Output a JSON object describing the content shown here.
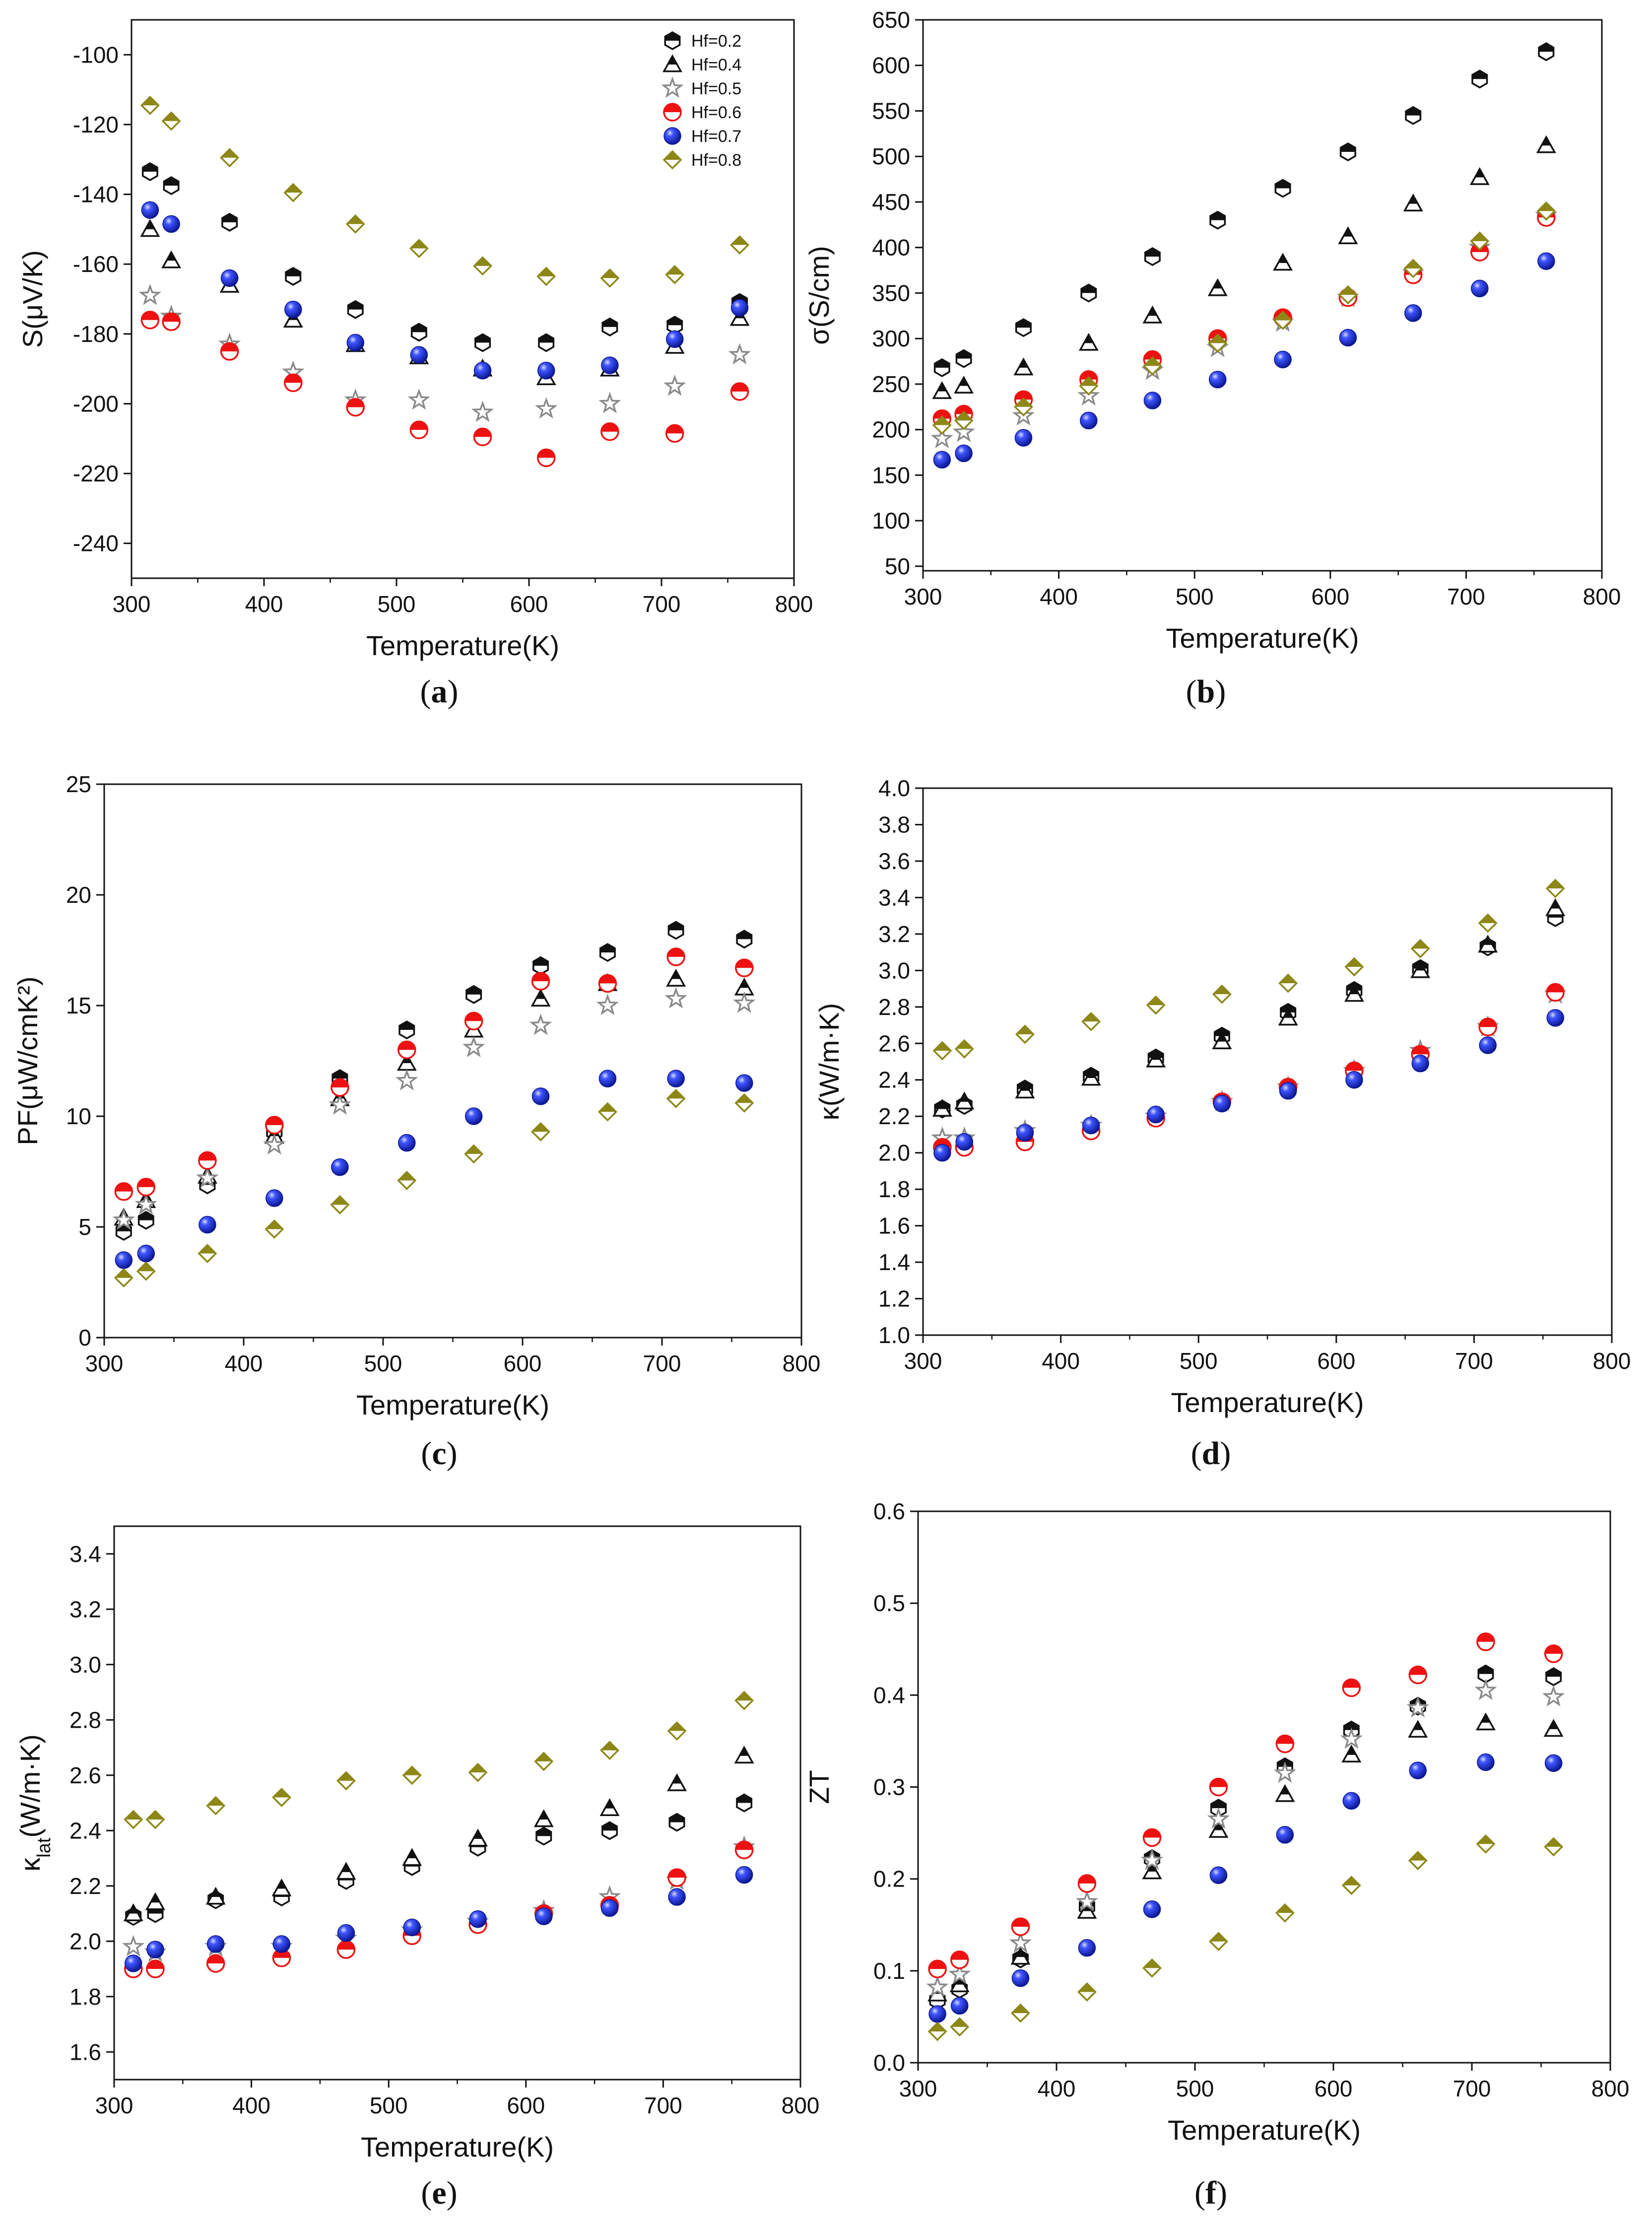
{
  "colors": {
    "Hf=0.2": "#111111",
    "Hf=0.4": "#111111",
    "Hf=0.5": "#8a8a8a",
    "Hf=0.6": "#ee1111",
    "Hf=0.7": "#1a2fe6",
    "Hf=0.8": "#8c8716"
  },
  "markers": {
    "Hf=0.2": "hexagon",
    "Hf=0.4": "triangle",
    "Hf=0.5": "star",
    "Hf=0.6": "circle",
    "Hf=0.7": "ball",
    "Hf=0.8": "diamond"
  },
  "chart_data": [
    {
      "id": "a",
      "type": "scatter",
      "caption_letter": "a",
      "xlabel": "Temperature(K)",
      "ylabel": "S(μV/K)",
      "xlim": [
        300,
        800
      ],
      "ylim": [
        -250,
        -90
      ],
      "xticks": [
        300,
        400,
        500,
        600,
        700,
        800
      ],
      "yticks": [
        -240,
        -220,
        -200,
        -180,
        -160,
        -140,
        -120,
        -100
      ],
      "legend": [
        "Hf=0.2",
        "Hf=0.4",
        "Hf=0.5",
        "Hf=0.6",
        "Hf=0.7",
        "Hf=0.8"
      ],
      "legend_position": "top-right",
      "x": [
        314,
        330,
        374,
        422,
        469,
        517,
        565,
        613,
        661,
        710,
        759
      ],
      "series": [
        {
          "name": "Hf=0.2",
          "values": [
            -133.5,
            -137.5,
            -148,
            -163.5,
            -173,
            -179.5,
            -182.5,
            -182.5,
            -178,
            -177.5,
            -171
          ]
        },
        {
          "name": "Hf=0.4",
          "values": [
            -150,
            -159,
            -166,
            -176,
            -183,
            -186.5,
            -190,
            -192.5,
            -190,
            -183.5,
            -175.5
          ]
        },
        {
          "name": "Hf=0.5",
          "values": [
            -169,
            -175,
            -183,
            -191,
            -199,
            -199,
            -202.5,
            -201.5,
            -200,
            -195,
            -186
          ]
        },
        {
          "name": "Hf=0.6",
          "values": [
            -176,
            -176.5,
            -185,
            -194,
            -201,
            -207.5,
            -209.5,
            -215.5,
            -208,
            -208.5,
            -196.5
          ]
        },
        {
          "name": "Hf=0.7",
          "values": [
            -144.5,
            -148.5,
            -164,
            -173,
            -182.5,
            -186,
            -190.5,
            -190.5,
            -189,
            -181.5,
            -172.5
          ]
        },
        {
          "name": "Hf=0.8",
          "values": [
            -114.5,
            -119,
            -129.5,
            -139.5,
            -148.5,
            -155.5,
            -160.5,
            -163.5,
            -164,
            -163,
            -154.5
          ]
        }
      ]
    },
    {
      "id": "b",
      "type": "scatter",
      "caption_letter": "b",
      "xlabel": "Temperature(K)",
      "ylabel": "σ(S/cm)",
      "xlim": [
        300,
        800
      ],
      "ylim": [
        45,
        650
      ],
      "xticks": [
        300,
        400,
        500,
        600,
        700,
        800
      ],
      "yticks": [
        50,
        100,
        150,
        200,
        250,
        300,
        350,
        400,
        450,
        500,
        550,
        600,
        650
      ],
      "x": [
        314,
        330,
        374,
        422,
        469,
        517,
        565,
        613,
        661,
        710,
        759
      ],
      "series": [
        {
          "name": "Hf=0.2",
          "values": [
            268,
            278,
            312,
            350,
            390,
            430,
            465,
            505,
            545,
            585,
            615
          ]
        },
        {
          "name": "Hf=0.4",
          "values": [
            242,
            248,
            268,
            295,
            325,
            355,
            383,
            412,
            448,
            477,
            512
          ]
        },
        {
          "name": "Hf=0.5",
          "values": [
            190,
            197,
            215,
            237,
            265,
            290,
            318,
            345,
            372,
            400,
            435
          ]
        },
        {
          "name": "Hf=0.6",
          "values": [
            212,
            217,
            233,
            255,
            277,
            300,
            323,
            345,
            370,
            395,
            433
          ]
        },
        {
          "name": "Hf=0.7",
          "values": [
            167,
            174,
            191,
            210,
            232,
            255,
            277,
            301,
            328,
            355,
            385
          ]
        },
        {
          "name": "Hf=0.8",
          "values": [
            205,
            210,
            225,
            248,
            270,
            295,
            320,
            348,
            377,
            407,
            440
          ]
        }
      ]
    },
    {
      "id": "c",
      "type": "scatter",
      "caption_letter": "c",
      "xlabel": "Temperature(K)",
      "ylabel": "PF(μW/cmK²)",
      "xlim": [
        300,
        800
      ],
      "ylim": [
        0,
        25
      ],
      "xticks": [
        300,
        400,
        500,
        600,
        700,
        800
      ],
      "yticks": [
        0,
        5,
        10,
        15,
        20,
        25
      ],
      "x": [
        314,
        330,
        374,
        422,
        469,
        517,
        565,
        613,
        661,
        710,
        759
      ],
      "series": [
        {
          "name": "Hf=0.2",
          "values": [
            4.8,
            5.3,
            6.9,
            9.3,
            11.7,
            13.9,
            15.5,
            16.8,
            17.4,
            18.4,
            18.0
          ]
        },
        {
          "name": "Hf=0.4",
          "values": [
            5.4,
            6.2,
            7.3,
            9.1,
            10.8,
            12.4,
            13.9,
            15.3,
            16.0,
            16.2,
            15.8
          ]
        },
        {
          "name": "Hf=0.5",
          "values": [
            5.3,
            6.0,
            7.2,
            8.7,
            10.5,
            11.6,
            13.1,
            14.1,
            15.0,
            15.3,
            15.1
          ]
        },
        {
          "name": "Hf=0.6",
          "values": [
            6.6,
            6.8,
            8.0,
            9.6,
            11.3,
            13.0,
            14.3,
            16.1,
            16.0,
            17.2,
            16.7
          ]
        },
        {
          "name": "Hf=0.7",
          "values": [
            3.5,
            3.8,
            5.1,
            6.3,
            7.7,
            8.8,
            10.0,
            10.9,
            11.7,
            11.7,
            11.5
          ]
        },
        {
          "name": "Hf=0.8",
          "values": [
            2.7,
            3.0,
            3.8,
            4.9,
            6.0,
            7.1,
            8.3,
            9.3,
            10.2,
            10.8,
            10.6
          ]
        }
      ]
    },
    {
      "id": "d",
      "type": "scatter",
      "caption_letter": "d",
      "xlabel": "Temperature(K)",
      "ylabel": "κ(W/m·K)",
      "xlim": [
        300,
        800
      ],
      "ylim": [
        1.0,
        4.0
      ],
      "xticks": [
        300,
        400,
        500,
        600,
        700,
        800
      ],
      "yticks": [
        "1.0",
        "1.2",
        "1.4",
        "1.6",
        "1.8",
        "2.0",
        "2.2",
        "2.4",
        "2.6",
        "2.8",
        "3.0",
        "3.2",
        "3.4",
        "3.6",
        "3.8",
        "4.0"
      ],
      "x": [
        314,
        330,
        374,
        422,
        469,
        517,
        565,
        613,
        661,
        710,
        759
      ],
      "series": [
        {
          "name": "Hf=0.2",
          "values": [
            2.24,
            2.26,
            2.35,
            2.42,
            2.52,
            2.64,
            2.77,
            2.89,
            3.01,
            3.13,
            3.29
          ]
        },
        {
          "name": "Hf=0.4",
          "values": [
            2.24,
            2.28,
            2.34,
            2.41,
            2.51,
            2.61,
            2.74,
            2.87,
            3.0,
            3.14,
            3.34
          ]
        },
        {
          "name": "Hf=0.5",
          "values": [
            2.08,
            2.08,
            2.12,
            2.15,
            2.2,
            2.28,
            2.36,
            2.45,
            2.56,
            2.69,
            2.87
          ]
        },
        {
          "name": "Hf=0.6",
          "values": [
            2.03,
            2.03,
            2.06,
            2.12,
            2.19,
            2.28,
            2.36,
            2.45,
            2.54,
            2.69,
            2.88
          ]
        },
        {
          "name": "Hf=0.7",
          "values": [
            2.0,
            2.06,
            2.11,
            2.15,
            2.21,
            2.27,
            2.34,
            2.4,
            2.49,
            2.59,
            2.74
          ]
        },
        {
          "name": "Hf=0.8",
          "values": [
            2.56,
            2.57,
            2.65,
            2.72,
            2.81,
            2.87,
            2.93,
            3.02,
            3.12,
            3.26,
            3.45
          ]
        }
      ]
    },
    {
      "id": "e",
      "type": "scatter",
      "caption_letter": "e",
      "xlabel": "Temperature(K)",
      "ylabel": "κlat(W/m·K)",
      "ylabel_main": "κ",
      "ylabel_sub": "lat",
      "ylabel_tail": "(W/m·K)",
      "xlim": [
        300,
        800
      ],
      "ylim": [
        1.5,
        3.5
      ],
      "xticks": [
        300,
        400,
        500,
        600,
        700,
        800
      ],
      "yticks": [
        "1.6",
        "1.8",
        "2.0",
        "2.2",
        "2.4",
        "2.6",
        "2.8",
        "3.0",
        "3.2",
        "3.4"
      ],
      "x": [
        314,
        330,
        374,
        422,
        469,
        517,
        565,
        613,
        661,
        710,
        759
      ],
      "series": [
        {
          "name": "Hf=0.2",
          "values": [
            2.09,
            2.1,
            2.15,
            2.16,
            2.22,
            2.27,
            2.34,
            2.38,
            2.4,
            2.43,
            2.5
          ]
        },
        {
          "name": "Hf=0.4",
          "values": [
            2.1,
            2.14,
            2.16,
            2.19,
            2.25,
            2.3,
            2.37,
            2.44,
            2.48,
            2.57,
            2.67
          ]
        },
        {
          "name": "Hf=0.5",
          "values": [
            1.98,
            1.96,
            1.98,
            1.98,
            2.01,
            2.04,
            2.07,
            2.11,
            2.16,
            2.22,
            2.34
          ]
        },
        {
          "name": "Hf=0.6",
          "values": [
            1.9,
            1.9,
            1.92,
            1.94,
            1.97,
            2.02,
            2.06,
            2.1,
            2.13,
            2.23,
            2.33
          ]
        },
        {
          "name": "Hf=0.7",
          "values": [
            1.92,
            1.97,
            1.99,
            1.99,
            2.03,
            2.05,
            2.08,
            2.09,
            2.12,
            2.16,
            2.24
          ]
        },
        {
          "name": "Hf=0.8",
          "values": [
            2.44,
            2.44,
            2.49,
            2.52,
            2.58,
            2.6,
            2.61,
            2.65,
            2.69,
            2.76,
            2.87
          ]
        }
      ]
    },
    {
      "id": "f",
      "type": "scatter",
      "caption_letter": "f",
      "xlabel": "Temperature(K)",
      "ylabel": "ZT",
      "xlim": [
        300,
        800
      ],
      "ylim": [
        0,
        0.6
      ],
      "xticks": [
        300,
        400,
        500,
        600,
        700,
        800
      ],
      "yticks": [
        "0.0",
        "0.1",
        "0.2",
        "0.3",
        "0.4",
        "0.5",
        "0.6"
      ],
      "x": [
        314,
        330,
        374,
        422,
        469,
        517,
        565,
        613,
        661,
        710,
        759
      ],
      "series": [
        {
          "name": "Hf=0.2",
          "values": [
            0.068,
            0.08,
            0.113,
            0.17,
            0.222,
            0.277,
            0.322,
            0.362,
            0.388,
            0.423,
            0.42
          ]
        },
        {
          "name": "Hf=0.4",
          "values": [
            0.075,
            0.085,
            0.115,
            0.165,
            0.208,
            0.253,
            0.292,
            0.335,
            0.362,
            0.37,
            0.363
          ]
        },
        {
          "name": "Hf=0.5",
          "values": [
            0.082,
            0.096,
            0.13,
            0.175,
            0.22,
            0.265,
            0.315,
            0.352,
            0.386,
            0.405,
            0.398
          ]
        },
        {
          "name": "Hf=0.6",
          "values": [
            0.102,
            0.112,
            0.148,
            0.195,
            0.245,
            0.3,
            0.347,
            0.408,
            0.422,
            0.458,
            0.445
          ]
        },
        {
          "name": "Hf=0.7",
          "values": [
            0.053,
            0.062,
            0.092,
            0.125,
            0.167,
            0.204,
            0.248,
            0.285,
            0.318,
            0.327,
            0.326
          ]
        },
        {
          "name": "Hf=0.8",
          "values": [
            0.034,
            0.039,
            0.054,
            0.077,
            0.103,
            0.132,
            0.163,
            0.193,
            0.22,
            0.238,
            0.235
          ]
        }
      ]
    }
  ]
}
